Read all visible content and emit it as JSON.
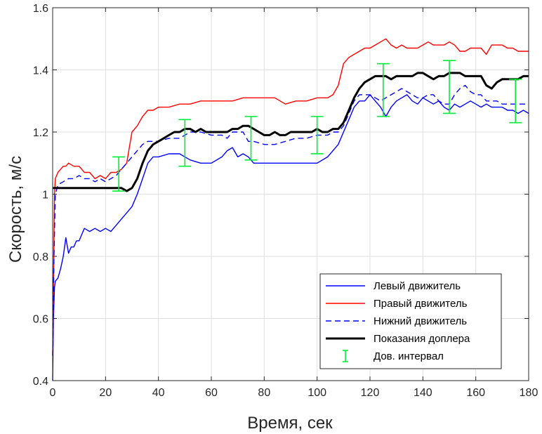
{
  "chart_data": {
    "type": "line",
    "xlabel": "Время, сек",
    "ylabel": "Скорость, м/с",
    "xlim": [
      0,
      180
    ],
    "ylim": [
      0.4,
      1.6
    ],
    "xticks": [
      0,
      20,
      40,
      60,
      80,
      100,
      120,
      140,
      160,
      180
    ],
    "yticks": [
      0.4,
      0.6,
      0.8,
      1.0,
      1.2,
      1.4,
      1.6
    ],
    "xtick_labels": [
      "0",
      "20",
      "40",
      "60",
      "80",
      "100",
      "120",
      "140",
      "160",
      "180"
    ],
    "ytick_labels": [
      "0.4",
      "0.6",
      "0.8",
      "1",
      "1.2",
      "1.4",
      "1.6"
    ],
    "grid": true,
    "legend_position": "bottom-right",
    "series": [
      {
        "name": "Левый движитель",
        "color": "#0000ff",
        "style": "solid",
        "x": [
          0,
          0.3,
          0.7,
          1,
          2,
          3,
          4,
          5,
          6,
          7,
          8,
          9,
          10,
          11,
          12,
          14,
          16,
          18,
          20,
          22,
          24,
          26,
          28,
          30,
          32,
          34,
          36,
          38,
          40,
          44,
          48,
          52,
          56,
          60,
          64,
          66,
          68,
          70,
          72,
          74,
          76,
          80,
          85,
          90,
          95,
          100,
          104,
          108,
          110,
          112,
          114,
          116,
          118,
          120,
          122,
          124,
          126,
          128,
          130,
          132,
          134,
          136,
          138,
          140,
          142,
          144,
          146,
          148,
          150,
          152,
          154,
          156,
          158,
          160,
          162,
          164,
          166,
          168,
          170,
          172,
          174,
          176,
          178,
          180
        ],
        "values": [
          0.4,
          0.6,
          0.7,
          0.72,
          0.73,
          0.76,
          0.8,
          0.86,
          0.81,
          0.83,
          0.83,
          0.85,
          0.85,
          0.87,
          0.89,
          0.88,
          0.89,
          0.88,
          0.89,
          0.88,
          0.9,
          0.92,
          0.94,
          0.96,
          1.0,
          1.05,
          1.1,
          1.12,
          1.12,
          1.13,
          1.13,
          1.11,
          1.1,
          1.1,
          1.12,
          1.14,
          1.15,
          1.12,
          1.13,
          1.12,
          1.1,
          1.1,
          1.1,
          1.1,
          1.1,
          1.1,
          1.12,
          1.16,
          1.2,
          1.24,
          1.28,
          1.3,
          1.3,
          1.32,
          1.3,
          1.28,
          1.25,
          1.28,
          1.3,
          1.31,
          1.32,
          1.3,
          1.29,
          1.31,
          1.3,
          1.29,
          1.3,
          1.28,
          1.27,
          1.29,
          1.28,
          1.29,
          1.3,
          1.29,
          1.28,
          1.29,
          1.28,
          1.28,
          1.28,
          1.27,
          1.27,
          1.26,
          1.27,
          1.26
        ]
      },
      {
        "name": "Правый движитель",
        "color": "#ff0000",
        "style": "solid",
        "x": [
          0,
          0.3,
          0.7,
          1,
          2,
          3,
          4,
          5,
          6,
          8,
          10,
          12,
          14,
          16,
          18,
          20,
          22,
          24,
          26,
          28,
          29,
          30,
          32,
          34,
          36,
          38,
          40,
          44,
          48,
          52,
          56,
          60,
          64,
          68,
          72,
          76,
          80,
          84,
          88,
          92,
          96,
          100,
          104,
          106,
          108,
          110,
          112,
          114,
          116,
          118,
          120,
          122,
          124,
          126,
          128,
          130,
          132,
          134,
          136,
          138,
          140,
          142,
          144,
          146,
          148,
          150,
          152,
          154,
          156,
          158,
          160,
          162,
          164,
          166,
          168,
          170,
          172,
          174,
          176,
          178,
          180
        ],
        "values": [
          0.48,
          0.7,
          1.0,
          1.05,
          1.07,
          1.08,
          1.09,
          1.09,
          1.1,
          1.09,
          1.09,
          1.07,
          1.07,
          1.05,
          1.06,
          1.05,
          1.07,
          1.07,
          1.08,
          1.1,
          1.15,
          1.2,
          1.22,
          1.25,
          1.27,
          1.27,
          1.28,
          1.28,
          1.29,
          1.29,
          1.3,
          1.3,
          1.3,
          1.3,
          1.31,
          1.31,
          1.31,
          1.31,
          1.29,
          1.3,
          1.3,
          1.31,
          1.31,
          1.32,
          1.35,
          1.42,
          1.44,
          1.45,
          1.46,
          1.47,
          1.47,
          1.48,
          1.49,
          1.5,
          1.48,
          1.47,
          1.48,
          1.47,
          1.47,
          1.47,
          1.48,
          1.49,
          1.48,
          1.48,
          1.48,
          1.49,
          1.48,
          1.46,
          1.46,
          1.47,
          1.47,
          1.47,
          1.45,
          1.48,
          1.48,
          1.48,
          1.47,
          1.47,
          1.46,
          1.46,
          1.46
        ]
      },
      {
        "name": "Нижний движитель",
        "color": "#0000ff",
        "style": "dashed",
        "x": [
          0,
          0.5,
          1,
          2,
          4,
          6,
          8,
          10,
          12,
          14,
          16,
          18,
          20,
          22,
          24,
          26,
          28,
          30,
          32,
          34,
          36,
          38,
          40,
          44,
          48,
          52,
          56,
          60,
          64,
          66,
          68,
          70,
          72,
          74,
          76,
          80,
          84,
          88,
          92,
          96,
          100,
          104,
          106,
          108,
          110,
          112,
          114,
          116,
          118,
          120,
          122,
          124,
          126,
          128,
          130,
          132,
          134,
          136,
          138,
          140,
          142,
          144,
          146,
          148,
          150,
          152,
          154,
          156,
          158,
          160,
          162,
          164,
          166,
          168,
          170,
          172,
          174,
          176,
          178,
          180
        ],
        "values": [
          0.48,
          0.8,
          1.0,
          1.03,
          1.04,
          1.05,
          1.05,
          1.06,
          1.05,
          1.05,
          1.04,
          1.05,
          1.04,
          1.05,
          1.06,
          1.08,
          1.1,
          1.12,
          1.14,
          1.16,
          1.17,
          1.17,
          1.17,
          1.18,
          1.18,
          1.2,
          1.2,
          1.19,
          1.19,
          1.18,
          1.2,
          1.2,
          1.2,
          1.17,
          1.17,
          1.16,
          1.16,
          1.17,
          1.18,
          1.18,
          1.19,
          1.19,
          1.2,
          1.2,
          1.22,
          1.26,
          1.3,
          1.32,
          1.32,
          1.32,
          1.31,
          1.3,
          1.31,
          1.32,
          1.33,
          1.34,
          1.33,
          1.32,
          1.31,
          1.31,
          1.32,
          1.32,
          1.3,
          1.29,
          1.29,
          1.32,
          1.34,
          1.35,
          1.33,
          1.32,
          1.32,
          1.3,
          1.3,
          1.3,
          1.29,
          1.29,
          1.29,
          1.29,
          1.29,
          1.29
        ]
      },
      {
        "name": "Показания доплера",
        "color": "#000000",
        "style": "solid",
        "x": [
          0,
          2,
          4,
          6,
          8,
          10,
          12,
          14,
          16,
          18,
          20,
          22,
          24,
          26,
          28,
          30,
          32,
          34,
          36,
          38,
          40,
          42,
          44,
          46,
          48,
          50,
          52,
          54,
          56,
          58,
          60,
          62,
          64,
          66,
          68,
          70,
          72,
          74,
          76,
          78,
          80,
          82,
          84,
          86,
          88,
          90,
          92,
          94,
          96,
          98,
          100,
          102,
          104,
          106,
          108,
          110,
          112,
          114,
          116,
          118,
          120,
          122,
          124,
          126,
          128,
          130,
          132,
          134,
          136,
          138,
          140,
          142,
          144,
          146,
          148,
          150,
          152,
          154,
          156,
          158,
          160,
          162,
          164,
          166,
          168,
          170,
          172,
          174,
          176,
          178,
          180
        ],
        "values": [
          1.02,
          1.02,
          1.02,
          1.02,
          1.02,
          1.02,
          1.02,
          1.02,
          1.02,
          1.02,
          1.02,
          1.02,
          1.02,
          1.02,
          1.01,
          1.02,
          1.05,
          1.1,
          1.14,
          1.16,
          1.17,
          1.18,
          1.19,
          1.2,
          1.2,
          1.21,
          1.21,
          1.2,
          1.21,
          1.2,
          1.2,
          1.2,
          1.2,
          1.2,
          1.21,
          1.21,
          1.22,
          1.22,
          1.21,
          1.2,
          1.19,
          1.19,
          1.2,
          1.19,
          1.19,
          1.2,
          1.2,
          1.2,
          1.2,
          1.2,
          1.21,
          1.2,
          1.2,
          1.21,
          1.21,
          1.23,
          1.27,
          1.31,
          1.34,
          1.36,
          1.37,
          1.38,
          1.38,
          1.38,
          1.37,
          1.38,
          1.38,
          1.38,
          1.38,
          1.39,
          1.39,
          1.38,
          1.37,
          1.38,
          1.38,
          1.39,
          1.39,
          1.39,
          1.38,
          1.38,
          1.38,
          1.38,
          1.35,
          1.34,
          1.36,
          1.37,
          1.37,
          1.37,
          1.37,
          1.38,
          1.38
        ]
      }
    ],
    "error_bars": {
      "name": "Дов. интервал",
      "color": "#00ee33",
      "x": [
        25,
        50,
        75,
        100,
        125,
        150,
        175
      ],
      "lower": [
        1.01,
        1.09,
        1.11,
        1.13,
        1.25,
        1.26,
        1.23
      ],
      "upper": [
        1.12,
        1.24,
        1.25,
        1.25,
        1.42,
        1.43,
        1.37
      ]
    }
  }
}
